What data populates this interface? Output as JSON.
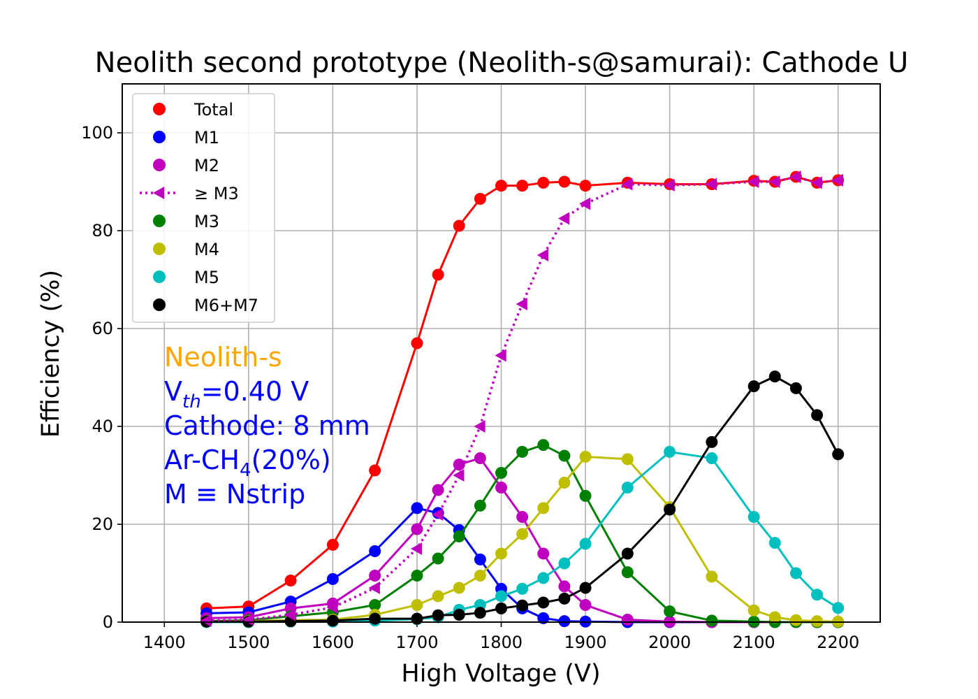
{
  "chart_data": {
    "type": "line",
    "title": "Neolith second prototype (Neolith-s@samurai): Cathode U",
    "xlabel": "High Voltage (V)",
    "ylabel": "Efficiency (%)",
    "xlim": [
      1350,
      2250
    ],
    "ylim": [
      0,
      110
    ],
    "xticks": [
      1400,
      1500,
      1600,
      1700,
      1800,
      1900,
      2000,
      2100,
      2200
    ],
    "yticks": [
      0,
      20,
      40,
      60,
      80,
      100
    ],
    "grid": true,
    "legend_position": "upper-left",
    "x": [
      1450,
      1500,
      1550,
      1600,
      1650,
      1700,
      1725,
      1750,
      1775,
      1800,
      1825,
      1850,
      1875,
      1900,
      1950,
      2000,
      2050,
      2100,
      2125,
      2150,
      2175,
      2200
    ],
    "series": [
      {
        "name": "Total",
        "color": "#ff0000",
        "marker": "circle",
        "line": "solid",
        "values": [
          2.8,
          3.2,
          8.5,
          15.8,
          31.0,
          57.0,
          71.0,
          81.0,
          86.5,
          89.2,
          89.2,
          89.8,
          90.0,
          89.2,
          89.8,
          89.5,
          89.5,
          90.2,
          90.0,
          91.0,
          89.8,
          90.3
        ]
      },
      {
        "name": "M1",
        "color": "#0000ff",
        "marker": "circle",
        "line": "solid",
        "values": [
          1.8,
          2.0,
          4.2,
          8.8,
          14.5,
          23.3,
          22.3,
          18.8,
          12.8,
          6.8,
          2.8,
          0.8,
          0.2,
          0.1,
          0,
          0,
          0,
          0,
          0,
          0,
          0,
          0
        ]
      },
      {
        "name": "M2",
        "color": "#bf00bf",
        "marker": "circle",
        "line": "solid",
        "values": [
          0.8,
          1.0,
          2.8,
          3.8,
          9.5,
          19.0,
          27.0,
          32.2,
          33.5,
          27.5,
          21.5,
          14.0,
          7.3,
          3.5,
          0.5,
          0.1,
          0,
          0,
          0,
          0,
          0,
          0
        ]
      },
      {
        "name": "≥ M3",
        "color": "#bf00bf",
        "marker": "triangle-left",
        "line": "dotted",
        "values": [
          0.3,
          0.5,
          1.5,
          3.0,
          7.0,
          15.0,
          22.0,
          30.0,
          40.0,
          54.5,
          65.0,
          75.0,
          82.5,
          85.5,
          89.5,
          89.3,
          89.5,
          90.0,
          90.0,
          91.0,
          89.8,
          90.3
        ]
      },
      {
        "name": "M3",
        "color": "#008000",
        "marker": "circle",
        "line": "solid",
        "values": [
          0.2,
          0.4,
          1.2,
          2.0,
          3.5,
          9.5,
          13.0,
          17.5,
          23.8,
          30.5,
          34.8,
          36.2,
          34.0,
          25.8,
          10.2,
          2.2,
          0.3,
          0.1,
          0,
          0,
          0,
          0
        ]
      },
      {
        "name": "M4",
        "color": "#bfbf00",
        "marker": "circle",
        "line": "solid",
        "values": [
          0.1,
          0.2,
          0.4,
          0.5,
          1.5,
          3.5,
          5.3,
          7.0,
          9.5,
          14.0,
          18.0,
          23.3,
          28.5,
          33.8,
          33.3,
          23.5,
          9.3,
          2.4,
          1.0,
          0.4,
          0.2,
          0.1
        ]
      },
      {
        "name": "M5",
        "color": "#00bfbf",
        "marker": "circle",
        "line": "solid",
        "values": [
          0,
          0,
          0.1,
          0.1,
          0.3,
          0.6,
          1.0,
          2.5,
          3.5,
          5.3,
          6.8,
          9.0,
          12.0,
          16.0,
          27.5,
          34.8,
          33.5,
          21.5,
          16.2,
          10.0,
          5.6,
          2.9
        ]
      },
      {
        "name": "M6+M7",
        "color": "#000000",
        "marker": "circle",
        "line": "solid",
        "values": [
          0.1,
          0.1,
          0.2,
          0.3,
          0.7,
          0.7,
          1.4,
          1.5,
          1.9,
          2.8,
          3.4,
          4.0,
          4.8,
          7.0,
          14.0,
          23.0,
          36.8,
          48.2,
          50.2,
          47.8,
          42.3,
          34.3
        ]
      }
    ],
    "annotations": [
      {
        "text": "Neolith-s",
        "color": "#ffa500"
      },
      {
        "text": "V",
        "sub": "th",
        "rest": "=0.40 V",
        "color": "#0000ff"
      },
      {
        "text": "Cathode: 8 mm",
        "color": "#0000ff"
      },
      {
        "text": "Ar-CH",
        "sub": "4",
        "rest": "(20%)",
        "color": "#0000ff"
      },
      {
        "text": "M ≡ Nstrip",
        "color": "#0000ff"
      }
    ]
  }
}
